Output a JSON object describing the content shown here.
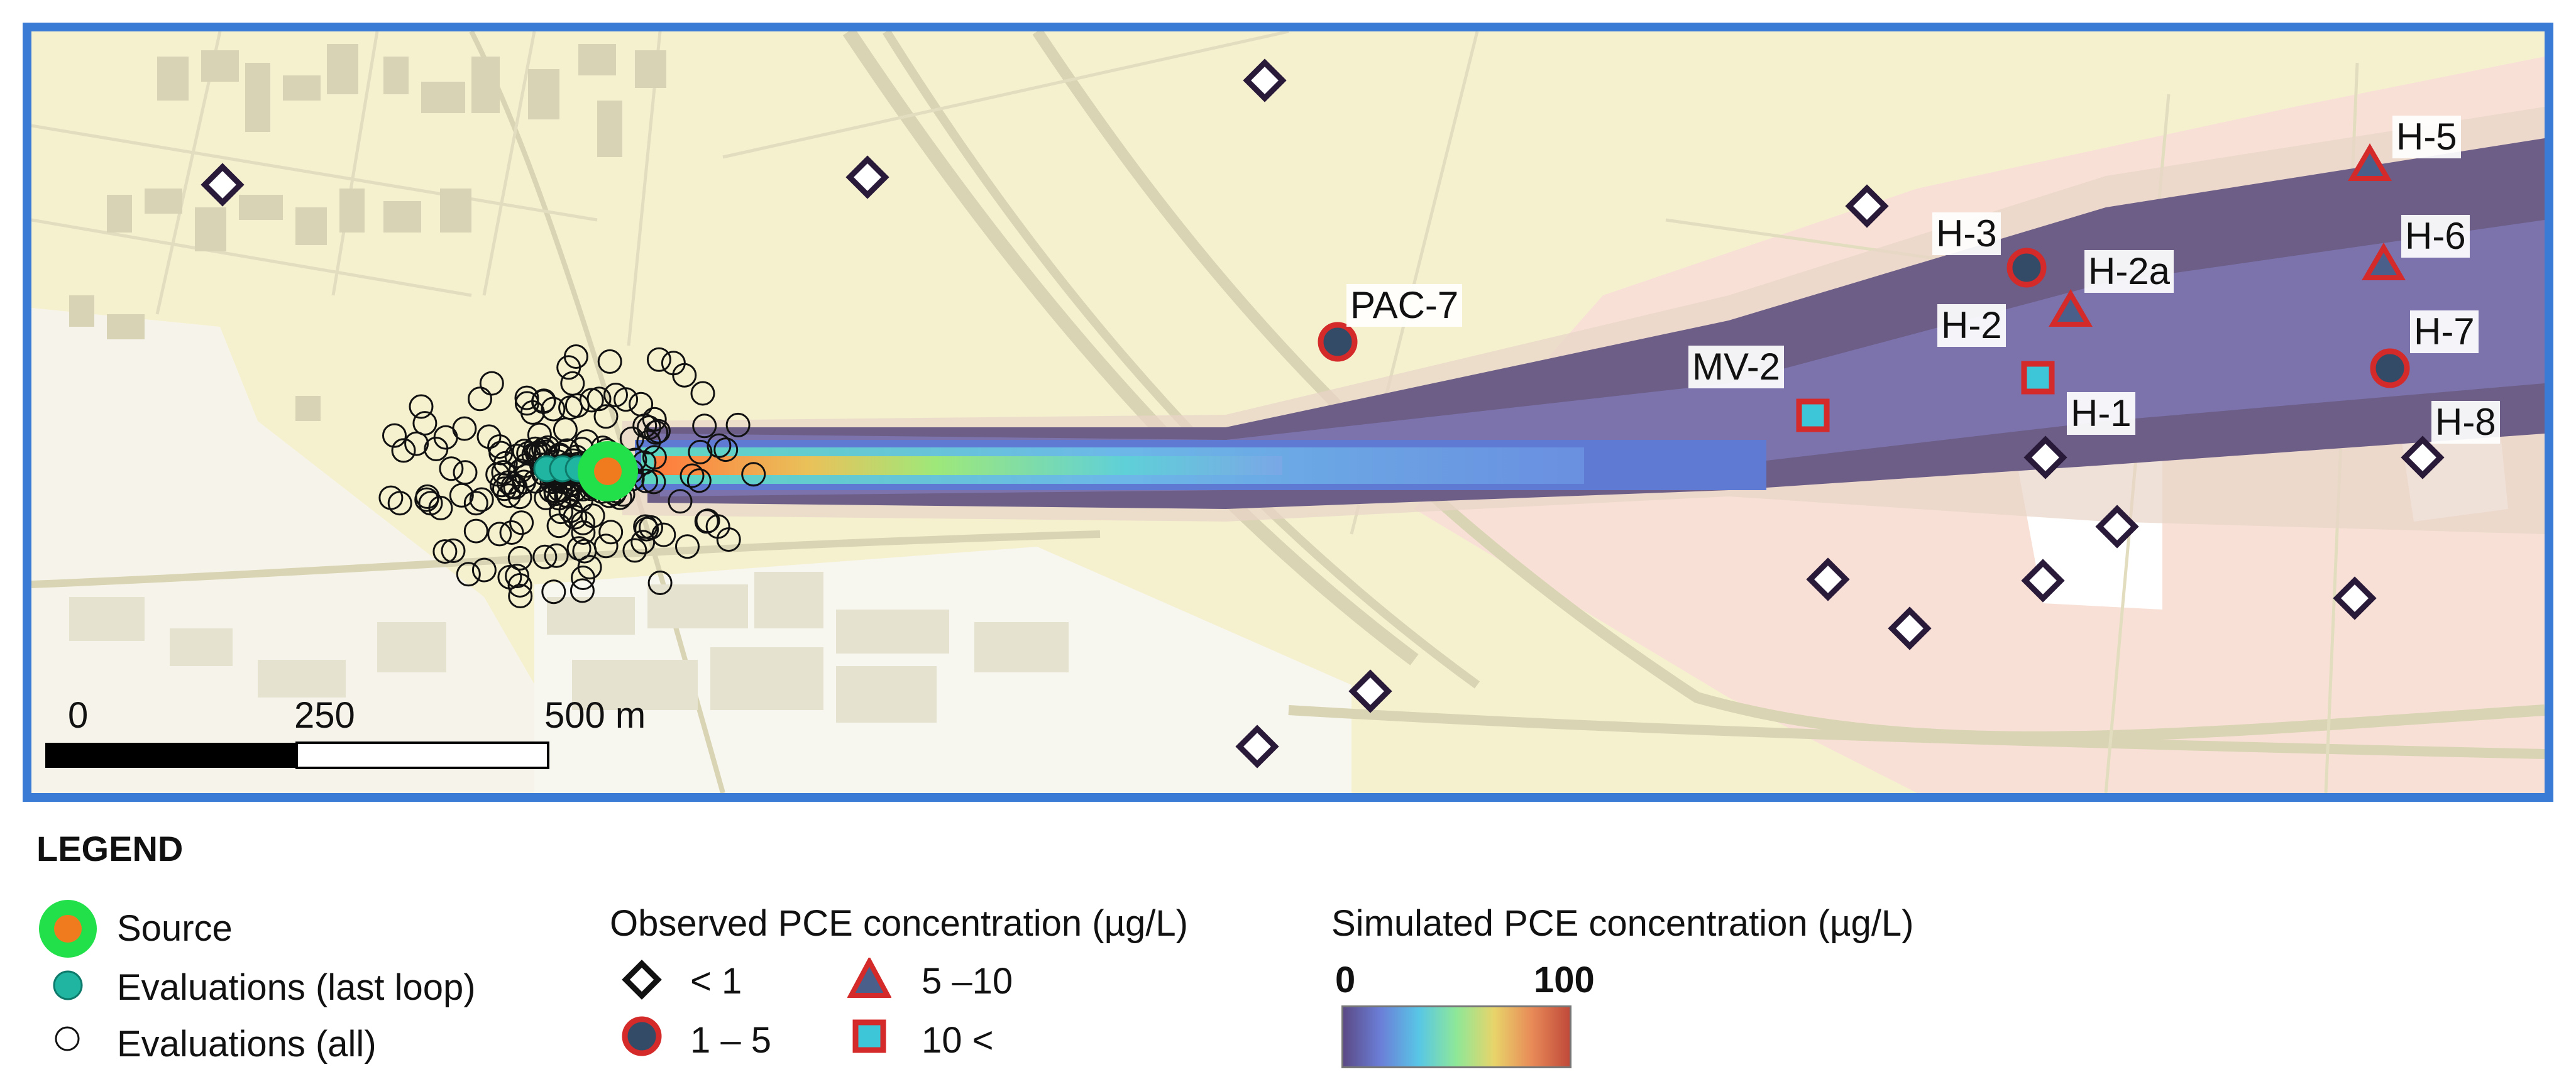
{
  "map": {
    "wells": [
      {
        "name": "PAC-7",
        "category": "1-5"
      },
      {
        "name": "MV-2",
        "category": "10<"
      },
      {
        "name": "H-1",
        "category": "<1"
      },
      {
        "name": "H-2",
        "category": "10<"
      },
      {
        "name": "H-2a",
        "category": "5-10"
      },
      {
        "name": "H-3",
        "category": "1-5"
      },
      {
        "name": "H-5",
        "category": "5-10"
      },
      {
        "name": "H-6",
        "category": "5-10"
      },
      {
        "name": "H-7",
        "category": "1-5"
      },
      {
        "name": "H-8",
        "category": "<1"
      }
    ],
    "scale_bar": {
      "tick_0": "0",
      "tick_250": "250",
      "tick_500": "500 m"
    },
    "colors": {
      "frame": "#3a7bd5",
      "source_outer": "#22e04a",
      "source_inner": "#f07a1e",
      "last_loop": "#1fb5a0",
      "well_edge": "#d42a2a",
      "well_fill": "#334b66",
      "square_fill": "#3cc6d8"
    }
  },
  "legend": {
    "title": "LEGEND",
    "source": "Source",
    "evaluations_last": "Evaluations (last loop)",
    "evaluations_all": "Evaluations (all)",
    "observed_title": "Observed PCE concentration (µg/L)",
    "obs_lt1": "< 1",
    "obs_1_5": "1 – 5",
    "obs_5_10": "5 –10",
    "obs_gt10": "10 <",
    "simulated_title": "Simulated PCE concentration (µg/L)",
    "colorbar_min": "0",
    "colorbar_max": "100"
  }
}
